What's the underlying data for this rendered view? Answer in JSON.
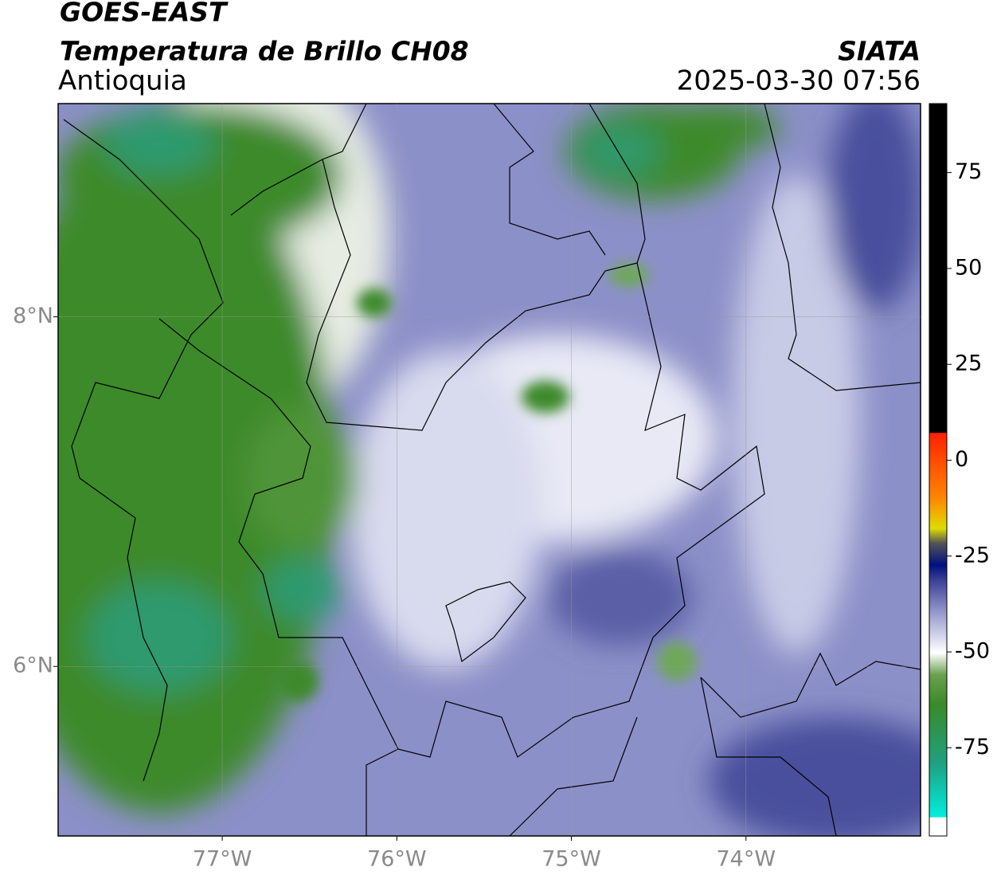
{
  "header": {
    "title": "GOES-EAST",
    "subtitle": "Temperatura de Brillo CH08",
    "region": "Antioquia",
    "source": "SIATA",
    "datetime": "2025-03-30 07:56"
  },
  "map": {
    "xlim": [
      -77.94,
      -73.0
    ],
    "ylim": [
      5.03,
      9.22
    ],
    "lon_ticks": [
      {
        "value": -77,
        "label": "77°W"
      },
      {
        "value": -76,
        "label": "76°W"
      },
      {
        "value": -75,
        "label": "75°W"
      },
      {
        "value": -74,
        "label": "74°W"
      }
    ],
    "lat_ticks": [
      {
        "value": 8,
        "label": "8°N"
      },
      {
        "value": 6,
        "label": "6°N"
      }
    ]
  },
  "colorbar": {
    "lim": [
      -98,
      93
    ],
    "ticks": [
      75,
      50,
      25,
      0,
      -25,
      -50,
      -75
    ]
  }
}
